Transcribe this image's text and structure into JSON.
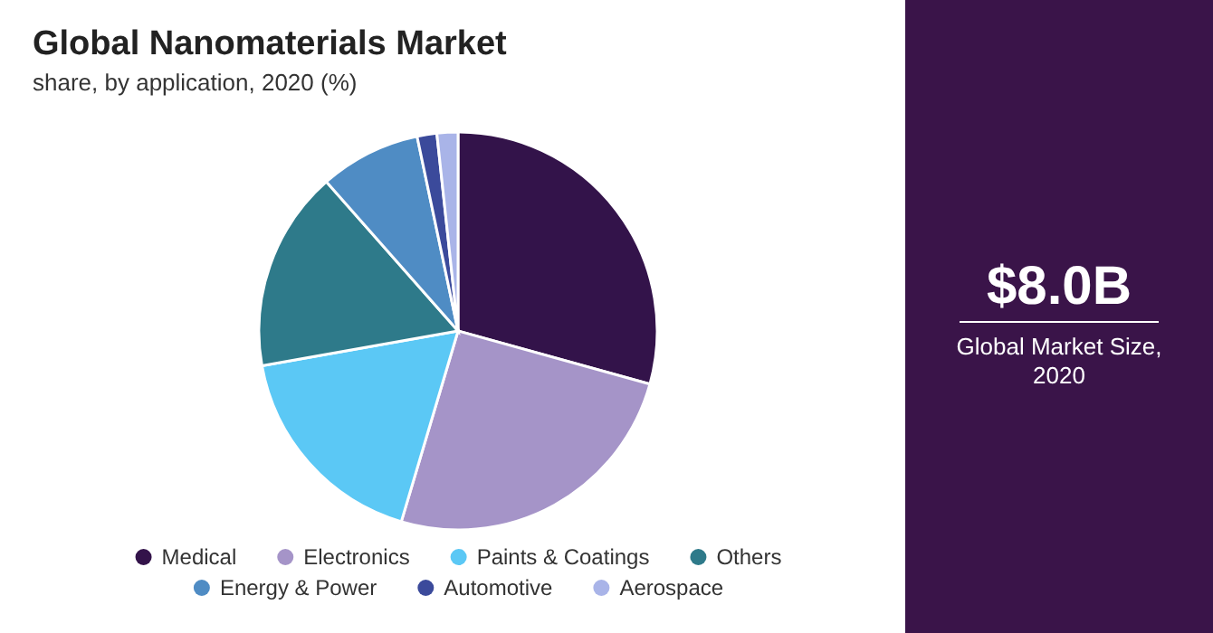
{
  "chart_data": {
    "type": "pie",
    "title": "Global Nanomaterials Market",
    "subtitle": "share, by application, 2020 (%)",
    "categories": [
      "Medical",
      "Electronics",
      "Paints & Coatings",
      "Others",
      "Energy & Power",
      "Automotive",
      "Aerospace"
    ],
    "values": [
      29.3,
      25.3,
      17.6,
      16.3,
      8.2,
      1.6,
      1.7
    ],
    "colors": [
      "#33134a",
      "#a594c8",
      "#5bc8f5",
      "#2e7a8a",
      "#4f8cc4",
      "#3b4a9b",
      "#a9b4e8"
    ],
    "legend": "bottom",
    "annotations": [
      "$8.0B",
      "Global Market Size, 2020"
    ]
  }
}
